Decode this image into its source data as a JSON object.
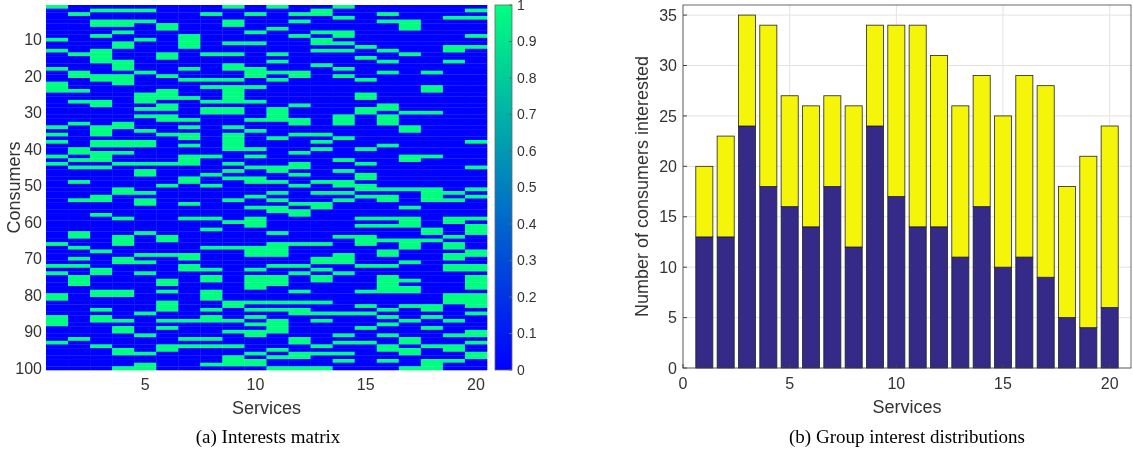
{
  "chart_data": [
    {
      "type": "heatmap",
      "title": "(a) Interests matrix",
      "xlabel": "Services",
      "ylabel": "Consumers",
      "categories": [
        null,
        null,
        null,
        null,
        "5",
        null,
        null,
        null,
        null,
        "10",
        null,
        null,
        null,
        null,
        "15",
        null,
        null,
        null,
        null,
        "20"
      ],
      "y_categories": [
        null,
        null,
        null,
        null,
        null,
        null,
        null,
        null,
        null,
        "10",
        null,
        null,
        null,
        null,
        null,
        null,
        null,
        null,
        null,
        "20",
        null,
        null,
        null,
        null,
        null,
        null,
        null,
        null,
        null,
        "30",
        null,
        null,
        null,
        null,
        null,
        null,
        null,
        null,
        null,
        "40",
        null,
        null,
        null,
        null,
        null,
        null,
        null,
        null,
        null,
        "50",
        null,
        null,
        null,
        null,
        null,
        null,
        null,
        null,
        null,
        "60",
        null,
        null,
        null,
        null,
        null,
        null,
        null,
        null,
        null,
        "70",
        null,
        null,
        null,
        null,
        null,
        null,
        null,
        null,
        null,
        "80",
        null,
        null,
        null,
        null,
        null,
        null,
        null,
        null,
        null,
        "90",
        null,
        null,
        null,
        null,
        null,
        null,
        null,
        null,
        null,
        "100"
      ],
      "clim": [
        0,
        1
      ],
      "cticks": [
        0,
        0.1,
        0.2,
        0.3,
        0.4,
        0.5,
        0.6,
        0.7,
        0.8,
        0.9,
        1
      ],
      "cells": [
        [
          1,
          0,
          0,
          0,
          0,
          0,
          0,
          0,
          1,
          0,
          1,
          0,
          0,
          1,
          0,
          0,
          0,
          0,
          0,
          0
        ],
        [
          0,
          0,
          1,
          1,
          1,
          0,
          0,
          0,
          0,
          0,
          0,
          0,
          1,
          0,
          0,
          0,
          0,
          0,
          0,
          1
        ],
        [
          0,
          1,
          0,
          0,
          0,
          0,
          0,
          1,
          0,
          1,
          0,
          1,
          1,
          0,
          0,
          1,
          0,
          0,
          0,
          0
        ],
        [
          0,
          0,
          0,
          0,
          0,
          0,
          0,
          0,
          0,
          0,
          0,
          0,
          0,
          1,
          0,
          0,
          0,
          0,
          1,
          1
        ],
        [
          0,
          0,
          1,
          1,
          1,
          0,
          0,
          0,
          1,
          0,
          0,
          1,
          0,
          0,
          0,
          1,
          1,
          0,
          0,
          0
        ],
        [
          0,
          0,
          1,
          1,
          0,
          1,
          0,
          0,
          1,
          0,
          0,
          0,
          0,
          0,
          0,
          0,
          1,
          0,
          0,
          0
        ],
        [
          0,
          0,
          0,
          0,
          0,
          1,
          0,
          0,
          0,
          0,
          1,
          0,
          0,
          0,
          0,
          0,
          1,
          0,
          0,
          0
        ],
        [
          0,
          0,
          0,
          1,
          0,
          0,
          0,
          0,
          0,
          1,
          0,
          0,
          1,
          1,
          0,
          0,
          0,
          0,
          0,
          0
        ],
        [
          0,
          0,
          1,
          0,
          0,
          0,
          1,
          0,
          0,
          0,
          0,
          1,
          0,
          1,
          0,
          0,
          0,
          0,
          0,
          1
        ],
        [
          1,
          0,
          0,
          0,
          1,
          0,
          1,
          0,
          0,
          0,
          0,
          0,
          1,
          0,
          0,
          0,
          0,
          0,
          0,
          0
        ],
        [
          0,
          0,
          0,
          1,
          0,
          0,
          1,
          0,
          1,
          1,
          0,
          0,
          1,
          1,
          0,
          0,
          0,
          0,
          0,
          0
        ],
        [
          0,
          0,
          0,
          1,
          0,
          0,
          1,
          0,
          0,
          0,
          0,
          0,
          0,
          0,
          1,
          0,
          0,
          0,
          1,
          1
        ],
        [
          1,
          0,
          1,
          0,
          0,
          0,
          0,
          0,
          0,
          0,
          0,
          0,
          1,
          1,
          0,
          1,
          0,
          0,
          1,
          0
        ],
        [
          0,
          1,
          1,
          0,
          0,
          1,
          0,
          1,
          1,
          0,
          1,
          0,
          0,
          0,
          0,
          0,
          1,
          0,
          0,
          0
        ],
        [
          0,
          0,
          1,
          0,
          0,
          1,
          0,
          0,
          0,
          0,
          0,
          0,
          0,
          0,
          1,
          0,
          0,
          0,
          0,
          0
        ],
        [
          0,
          0,
          1,
          1,
          0,
          0,
          0,
          0,
          0,
          0,
          1,
          0,
          0,
          0,
          0,
          1,
          0,
          0,
          1,
          0
        ],
        [
          0,
          0,
          0,
          1,
          0,
          0,
          0,
          0,
          1,
          0,
          0,
          0,
          1,
          0,
          0,
          0,
          0,
          0,
          0,
          0
        ],
        [
          1,
          0,
          0,
          1,
          0,
          0,
          1,
          0,
          1,
          1,
          0,
          0,
          0,
          1,
          0,
          0,
          0,
          0,
          0,
          0
        ],
        [
          0,
          1,
          0,
          0,
          1,
          0,
          0,
          0,
          0,
          1,
          1,
          1,
          0,
          0,
          0,
          1,
          0,
          1,
          0,
          0
        ],
        [
          0,
          1,
          1,
          1,
          0,
          1,
          0,
          0,
          0,
          1,
          0,
          1,
          0,
          1,
          0,
          0,
          0,
          0,
          0,
          0
        ],
        [
          0,
          0,
          1,
          1,
          0,
          0,
          1,
          1,
          1,
          0,
          1,
          0,
          0,
          0,
          1,
          0,
          0,
          0,
          0,
          0
        ],
        [
          1,
          0,
          0,
          1,
          0,
          0,
          0,
          0,
          0,
          0,
          0,
          0,
          0,
          0,
          0,
          0,
          0,
          0,
          0,
          0
        ],
        [
          1,
          0,
          0,
          0,
          0,
          0,
          0,
          1,
          1,
          1,
          0,
          0,
          0,
          0,
          0,
          0,
          0,
          1,
          0,
          0
        ],
        [
          1,
          1,
          0,
          0,
          0,
          1,
          0,
          0,
          1,
          0,
          0,
          0,
          0,
          0,
          0,
          0,
          0,
          1,
          0,
          0
        ],
        [
          0,
          0,
          0,
          0,
          1,
          1,
          0,
          0,
          1,
          0,
          0,
          0,
          0,
          0,
          1,
          0,
          0,
          0,
          0,
          0
        ],
        [
          0,
          0,
          0,
          0,
          1,
          1,
          1,
          0,
          1,
          0,
          0,
          0,
          0,
          0,
          1,
          0,
          0,
          0,
          0,
          0
        ],
        [
          0,
          1,
          1,
          0,
          1,
          0,
          0,
          1,
          1,
          1,
          0,
          0,
          0,
          0,
          0,
          0,
          0,
          0,
          0,
          0
        ],
        [
          0,
          0,
          1,
          0,
          0,
          1,
          0,
          0,
          0,
          0,
          0,
          1,
          0,
          0,
          0,
          1,
          0,
          0,
          0,
          0
        ],
        [
          0,
          0,
          0,
          0,
          1,
          1,
          0,
          1,
          1,
          0,
          1,
          0,
          0,
          0,
          1,
          1,
          0,
          0,
          0,
          0
        ],
        [
          0,
          0,
          0,
          0,
          0,
          0,
          0,
          1,
          1,
          0,
          1,
          0,
          0,
          0,
          1,
          0,
          1,
          1,
          0,
          0
        ],
        [
          0,
          0,
          0,
          0,
          1,
          1,
          0,
          0,
          0,
          0,
          1,
          0,
          0,
          1,
          0,
          1,
          0,
          0,
          0,
          0
        ],
        [
          0,
          0,
          0,
          0,
          0,
          1,
          1,
          0,
          0,
          1,
          1,
          1,
          0,
          1,
          0,
          1,
          0,
          0,
          0,
          0
        ],
        [
          0,
          1,
          0,
          1,
          0,
          0,
          0,
          0,
          0,
          0,
          0,
          1,
          0,
          1,
          0,
          1,
          0,
          0,
          0,
          0
        ],
        [
          1,
          0,
          1,
          1,
          0,
          0,
          1,
          0,
          1,
          0,
          0,
          0,
          0,
          0,
          0,
          0,
          1,
          0,
          0,
          0
        ],
        [
          0,
          0,
          1,
          0,
          1,
          0,
          0,
          0,
          0,
          1,
          0,
          0,
          0,
          0,
          0,
          0,
          1,
          0,
          0,
          0
        ],
        [
          1,
          0,
          1,
          0,
          0,
          1,
          1,
          0,
          1,
          0,
          0,
          1,
          1,
          0,
          0,
          0,
          0,
          0,
          0,
          0
        ],
        [
          0,
          0,
          0,
          0,
          0,
          0,
          1,
          0,
          1,
          0,
          1,
          0,
          0,
          1,
          0,
          0,
          0,
          0,
          0,
          0
        ],
        [
          1,
          0,
          1,
          1,
          1,
          0,
          0,
          0,
          1,
          0,
          0,
          0,
          1,
          0,
          0,
          0,
          0,
          0,
          0,
          1
        ],
        [
          0,
          0,
          1,
          1,
          1,
          0,
          1,
          0,
          1,
          0,
          0,
          0,
          0,
          0,
          0,
          1,
          0,
          0,
          0,
          0
        ],
        [
          0,
          1,
          0,
          0,
          0,
          0,
          0,
          0,
          1,
          1,
          0,
          0,
          1,
          0,
          1,
          0,
          0,
          0,
          0,
          0
        ],
        [
          0,
          1,
          1,
          1,
          0,
          0,
          0,
          0,
          0,
          0,
          0,
          1,
          0,
          0,
          0,
          0,
          0,
          0,
          0,
          0
        ],
        [
          1,
          0,
          1,
          0,
          0,
          0,
          1,
          1,
          0,
          1,
          0,
          0,
          0,
          0,
          0,
          0,
          1,
          1,
          0,
          0
        ],
        [
          0,
          1,
          1,
          0,
          0,
          0,
          1,
          0,
          0,
          0,
          0,
          0,
          0,
          1,
          0,
          0,
          1,
          0,
          0,
          0
        ],
        [
          1,
          0,
          0,
          1,
          1,
          1,
          1,
          0,
          1,
          0,
          0,
          1,
          0,
          0,
          1,
          0,
          0,
          0,
          0,
          0
        ],
        [
          0,
          1,
          1,
          0,
          0,
          0,
          0,
          0,
          0,
          1,
          1,
          1,
          0,
          0,
          0,
          0,
          0,
          0,
          0,
          1
        ],
        [
          0,
          0,
          0,
          0,
          1,
          0,
          0,
          0,
          1,
          0,
          1,
          0,
          0,
          1,
          0,
          0,
          0,
          0,
          0,
          0
        ],
        [
          0,
          0,
          0,
          0,
          1,
          0,
          0,
          1,
          0,
          0,
          0,
          1,
          0,
          0,
          1,
          0,
          0,
          0,
          0,
          0
        ],
        [
          0,
          0,
          0,
          0,
          0,
          0,
          1,
          0,
          1,
          1,
          0,
          0,
          0,
          0,
          1,
          0,
          0,
          0,
          0,
          0
        ],
        [
          0,
          1,
          0,
          0,
          0,
          0,
          1,
          0,
          0,
          1,
          1,
          0,
          1,
          1,
          0,
          0,
          0,
          0,
          0,
          0
        ],
        [
          0,
          0,
          0,
          0,
          0,
          1,
          0,
          1,
          0,
          0,
          0,
          1,
          0,
          1,
          1,
          0,
          0,
          0,
          0,
          0
        ],
        [
          0,
          0,
          0,
          1,
          0,
          0,
          0,
          0,
          0,
          0,
          0,
          0,
          0,
          0,
          1,
          1,
          1,
          1,
          0,
          1
        ],
        [
          0,
          0,
          0,
          1,
          1,
          0,
          0,
          0,
          0,
          0,
          1,
          0,
          1,
          1,
          0,
          0,
          0,
          1,
          1,
          0
        ],
        [
          0,
          0,
          1,
          0,
          0,
          0,
          0,
          0,
          0,
          1,
          0,
          0,
          0,
          0,
          1,
          1,
          0,
          1,
          0,
          1
        ],
        [
          0,
          1,
          1,
          0,
          1,
          0,
          0,
          0,
          1,
          0,
          1,
          0,
          0,
          1,
          0,
          1,
          0,
          1,
          1,
          0
        ],
        [
          0,
          0,
          0,
          0,
          1,
          0,
          1,
          0,
          0,
          0,
          0,
          1,
          1,
          0,
          0,
          0,
          0,
          0,
          0,
          0
        ],
        [
          0,
          0,
          0,
          0,
          0,
          0,
          0,
          0,
          0,
          1,
          1,
          0,
          1,
          0,
          0,
          0,
          1,
          0,
          0,
          0
        ],
        [
          0,
          0,
          0,
          0,
          0,
          0,
          0,
          0,
          0,
          0,
          1,
          1,
          0,
          0,
          0,
          0,
          0,
          0,
          0,
          0
        ],
        [
          0,
          0,
          1,
          0,
          0,
          0,
          0,
          0,
          0,
          0,
          0,
          1,
          0,
          0,
          0,
          0,
          0,
          0,
          0,
          0
        ],
        [
          0,
          0,
          0,
          1,
          0,
          0,
          1,
          1,
          0,
          1,
          0,
          0,
          0,
          0,
          1,
          1,
          1,
          0,
          1,
          1
        ],
        [
          0,
          0,
          0,
          0,
          0,
          0,
          0,
          0,
          1,
          1,
          0,
          0,
          0,
          0,
          0,
          0,
          1,
          0,
          1,
          0
        ],
        [
          0,
          0,
          0,
          0,
          0,
          0,
          0,
          0,
          0,
          1,
          0,
          0,
          0,
          0,
          1,
          1,
          1,
          0,
          0,
          1
        ],
        [
          0,
          0,
          0,
          0,
          0,
          0,
          0,
          1,
          0,
          0,
          0,
          0,
          0,
          0,
          0,
          0,
          0,
          1,
          0,
          1
        ],
        [
          0,
          1,
          0,
          0,
          1,
          0,
          0,
          0,
          0,
          0,
          1,
          0,
          0,
          0,
          0,
          0,
          0,
          1,
          0,
          1
        ],
        [
          0,
          1,
          0,
          1,
          0,
          1,
          0,
          0,
          0,
          0,
          0,
          0,
          0,
          1,
          1,
          0,
          0,
          0,
          1,
          0
        ],
        [
          0,
          0,
          0,
          1,
          0,
          1,
          0,
          0,
          0,
          0,
          0,
          0,
          0,
          0,
          1,
          1,
          1,
          1,
          0,
          0
        ],
        [
          1,
          0,
          0,
          1,
          0,
          0,
          0,
          0,
          0,
          0,
          1,
          1,
          1,
          0,
          1,
          0,
          1,
          0,
          1,
          0
        ],
        [
          0,
          1,
          0,
          0,
          0,
          0,
          0,
          1,
          1,
          1,
          1,
          0,
          0,
          0,
          0,
          0,
          1,
          0,
          1,
          0
        ],
        [
          0,
          0,
          1,
          0,
          0,
          0,
          0,
          0,
          0,
          1,
          1,
          0,
          0,
          0,
          0,
          1,
          0,
          0,
          0,
          1
        ],
        [
          0,
          0,
          0,
          0,
          1,
          1,
          1,
          0,
          0,
          1,
          1,
          0,
          0,
          1,
          0,
          1,
          0,
          0,
          1,
          1
        ],
        [
          0,
          1,
          0,
          1,
          0,
          0,
          1,
          0,
          0,
          0,
          0,
          0,
          1,
          1,
          0,
          0,
          0,
          0,
          1,
          0
        ],
        [
          0,
          0,
          0,
          1,
          1,
          0,
          0,
          0,
          0,
          0,
          0,
          0,
          1,
          1,
          0,
          0,
          1,
          0,
          0,
          0
        ],
        [
          1,
          1,
          0,
          0,
          0,
          0,
          1,
          0,
          0,
          0,
          1,
          1,
          0,
          0,
          1,
          1,
          0,
          0,
          1,
          1
        ],
        [
          0,
          0,
          1,
          0,
          0,
          0,
          1,
          1,
          0,
          1,
          0,
          0,
          1,
          0,
          0,
          0,
          0,
          0,
          1,
          1
        ],
        [
          1,
          0,
          1,
          0,
          1,
          0,
          0,
          0,
          0,
          0,
          0,
          1,
          0,
          1,
          0,
          0,
          0,
          0,
          0,
          0
        ],
        [
          0,
          1,
          0,
          0,
          0,
          0,
          0,
          1,
          0,
          1,
          1,
          0,
          1,
          0,
          0,
          1,
          0,
          0,
          0,
          1
        ],
        [
          0,
          1,
          0,
          0,
          0,
          1,
          0,
          1,
          0,
          1,
          1,
          0,
          1,
          0,
          0,
          1,
          1,
          0,
          0,
          1
        ],
        [
          0,
          1,
          0,
          0,
          0,
          1,
          0,
          0,
          0,
          1,
          1,
          0,
          0,
          0,
          0,
          1,
          0,
          0,
          0,
          1
        ],
        [
          0,
          0,
          0,
          0,
          0,
          0,
          0,
          0,
          0,
          1,
          0,
          0,
          0,
          0,
          0,
          1,
          1,
          0,
          0,
          1
        ],
        [
          0,
          0,
          1,
          1,
          0,
          1,
          0,
          1,
          0,
          0,
          0,
          1,
          0,
          0,
          1,
          1,
          1,
          0,
          0,
          0
        ],
        [
          1,
          0,
          1,
          1,
          0,
          0,
          0,
          1,
          0,
          0,
          0,
          0,
          0,
          0,
          0,
          0,
          0,
          0,
          1,
          1
        ],
        [
          1,
          0,
          0,
          0,
          0,
          0,
          0,
          1,
          0,
          0,
          0,
          0,
          0,
          0,
          0,
          0,
          0,
          0,
          1,
          1
        ],
        [
          0,
          0,
          0,
          0,
          0,
          1,
          0,
          0,
          1,
          1,
          1,
          1,
          1,
          0,
          0,
          0,
          0,
          0,
          1,
          1
        ],
        [
          0,
          0,
          0,
          0,
          0,
          1,
          0,
          0,
          1,
          0,
          0,
          0,
          0,
          0,
          1,
          0,
          1,
          1,
          0,
          1
        ],
        [
          0,
          0,
          1,
          0,
          0,
          1,
          0,
          1,
          0,
          1,
          1,
          1,
          0,
          0,
          0,
          1,
          0,
          1,
          0,
          0
        ],
        [
          0,
          0,
          0,
          0,
          1,
          0,
          0,
          0,
          0,
          0,
          0,
          1,
          1,
          1,
          1,
          0,
          0,
          0,
          0,
          1
        ],
        [
          1,
          0,
          1,
          0,
          0,
          0,
          0,
          1,
          0,
          1,
          0,
          0,
          0,
          0,
          0,
          1,
          0,
          1,
          0,
          0
        ],
        [
          1,
          0,
          1,
          1,
          0,
          1,
          1,
          1,
          1,
          0,
          1,
          0,
          1,
          0,
          0,
          0,
          1,
          0,
          1,
          0
        ],
        [
          1,
          0,
          0,
          0,
          0,
          0,
          0,
          0,
          0,
          1,
          1,
          0,
          0,
          0,
          0,
          1,
          0,
          0,
          0,
          0
        ],
        [
          0,
          0,
          0,
          1,
          0,
          1,
          0,
          0,
          0,
          0,
          1,
          0,
          0,
          0,
          1,
          0,
          0,
          1,
          0,
          0
        ],
        [
          0,
          0,
          0,
          1,
          0,
          0,
          0,
          0,
          1,
          1,
          1,
          0,
          0,
          0,
          0,
          0,
          0,
          0,
          0,
          1
        ],
        [
          0,
          0,
          0,
          0,
          1,
          0,
          0,
          0,
          0,
          1,
          0,
          0,
          0,
          1,
          0,
          1,
          0,
          0,
          1,
          1
        ],
        [
          0,
          1,
          0,
          0,
          0,
          0,
          1,
          1,
          0,
          0,
          0,
          1,
          0,
          0,
          0,
          0,
          1,
          0,
          0,
          0
        ],
        [
          1,
          0,
          0,
          0,
          0,
          0,
          0,
          0,
          0,
          0,
          0,
          1,
          0,
          1,
          1,
          0,
          1,
          0,
          0,
          1
        ],
        [
          0,
          0,
          1,
          0,
          0,
          1,
          1,
          1,
          1,
          0,
          0,
          0,
          1,
          0,
          0,
          1,
          0,
          1,
          1,
          0
        ],
        [
          0,
          0,
          0,
          1,
          0,
          1,
          0,
          0,
          0,
          0,
          1,
          0,
          0,
          0,
          0,
          1,
          1,
          0,
          1,
          0
        ],
        [
          0,
          0,
          0,
          1,
          1,
          0,
          0,
          0,
          0,
          1,
          0,
          1,
          1,
          1,
          0,
          0,
          1,
          0,
          0,
          1
        ],
        [
          0,
          0,
          0,
          0,
          0,
          0,
          0,
          0,
          1,
          0,
          1,
          1,
          0,
          0,
          0,
          0,
          0,
          0,
          0,
          1
        ],
        [
          0,
          0,
          0,
          0,
          0,
          0,
          0,
          0,
          1,
          1,
          0,
          0,
          0,
          1,
          0,
          1,
          0,
          1,
          1,
          0
        ],
        [
          0,
          0,
          0,
          0,
          1,
          0,
          0,
          1,
          1,
          1,
          0,
          0,
          0,
          0,
          0,
          0,
          0,
          1,
          0,
          0
        ],
        [
          0,
          0,
          0,
          1,
          1,
          0,
          0,
          0,
          0,
          0,
          1,
          1,
          1,
          0,
          0,
          0,
          1,
          1,
          0,
          0
        ]
      ]
    },
    {
      "type": "bar",
      "title": "(b) Group interest distributions",
      "xlabel": "Services",
      "ylabel": "Number of consumers interested",
      "stacked": true,
      "grid": true,
      "x": [
        1,
        2,
        3,
        4,
        5,
        6,
        7,
        8,
        9,
        10,
        11,
        12,
        13,
        14,
        15,
        16,
        17,
        18,
        19,
        20
      ],
      "xlim": [
        0,
        21
      ],
      "xticks": [
        0,
        5,
        10,
        15,
        20
      ],
      "ylim": [
        0,
        36
      ],
      "yticks": [
        0,
        5,
        10,
        15,
        20,
        25,
        30,
        35
      ],
      "series": [
        {
          "color": "#352a87",
          "values": [
            13,
            13,
            24,
            18,
            16,
            14,
            18,
            12,
            24,
            17,
            14,
            14,
            11,
            16,
            10,
            11,
            9,
            5,
            4,
            6
          ]
        },
        {
          "color": "#f5f50a",
          "values": [
            7,
            10,
            11,
            16,
            11,
            12,
            9,
            14,
            10,
            17,
            20,
            17,
            15,
            13,
            15,
            18,
            19,
            13,
            17,
            18
          ]
        }
      ]
    }
  ]
}
